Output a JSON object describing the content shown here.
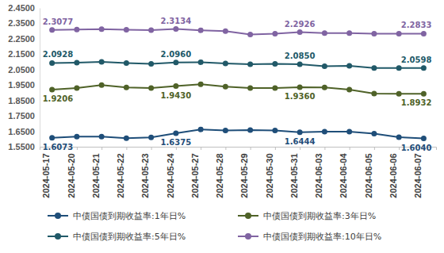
{
  "chart_data": {
    "type": "line",
    "x": [
      "2024-05-17",
      "2024-05-20",
      "2024-05-21",
      "2024-05-22",
      "2024-05-23",
      "2024-05-24",
      "2024-05-27",
      "2024-05-28",
      "2024-05-29",
      "2024-05-30",
      "2024-05-31",
      "2024-06-03",
      "2024-06-04",
      "2024-06-05",
      "2024-06-06",
      "2024-06-07"
    ],
    "series": [
      {
        "name": "中债国债到期收益率:1年日%",
        "color": "#1f4e79",
        "marker": "circle",
        "values": [
          1.6073,
          1.615,
          1.615,
          1.605,
          1.61,
          1.6375,
          1.662,
          1.655,
          1.658,
          1.655,
          1.6444,
          1.648,
          1.648,
          1.635,
          1.612,
          1.604
        ],
        "value_labels": [
          "1.6073",
          null,
          null,
          null,
          null,
          "1.6375",
          null,
          null,
          null,
          null,
          "1.6444",
          null,
          null,
          null,
          null,
          "1.6040"
        ]
      },
      {
        "name": "中债国债到期收益率:3年日%",
        "color": "#4f6228",
        "marker": "circle",
        "values": [
          1.9206,
          1.93,
          1.95,
          1.935,
          1.93,
          1.943,
          1.955,
          1.94,
          1.93,
          1.93,
          1.936,
          1.935,
          1.92,
          1.895,
          1.893,
          1.8932
        ],
        "value_labels": [
          "1.9206",
          null,
          null,
          null,
          null,
          "1.9430",
          null,
          null,
          null,
          null,
          "1.9360",
          null,
          null,
          null,
          null,
          "1.8932"
        ]
      },
      {
        "name": "中债国债到期收益率:5年日%",
        "color": "#215968",
        "marker": "circle",
        "values": [
          2.0928,
          2.095,
          2.1,
          2.093,
          2.088,
          2.096,
          2.098,
          2.09,
          2.085,
          2.087,
          2.085,
          2.072,
          2.075,
          2.06,
          2.06,
          2.0598
        ],
        "value_labels": [
          "2.0928",
          null,
          null,
          null,
          null,
          "2.0960",
          null,
          null,
          null,
          null,
          "2.0850",
          null,
          null,
          null,
          null,
          "2.0598"
        ]
      },
      {
        "name": "中债国债到期收益率:10年日%",
        "color": "#8064a2",
        "marker": "circle",
        "values": [
          2.3077,
          2.31,
          2.313,
          2.308,
          2.306,
          2.3134,
          2.305,
          2.3,
          2.278,
          2.283,
          2.2926,
          2.287,
          2.287,
          2.283,
          2.283,
          2.2833
        ],
        "value_labels": [
          "2.3077",
          null,
          null,
          null,
          null,
          "2.3134",
          null,
          null,
          null,
          null,
          "2.2926",
          null,
          null,
          null,
          null,
          "2.2833"
        ]
      }
    ],
    "ylim": [
      1.55,
      2.45
    ],
    "yticks": [
      {
        "value": 1.55,
        "label": "1.5500"
      },
      {
        "value": 1.65,
        "label": "1.6500"
      },
      {
        "value": 1.75,
        "label": "1.7500"
      },
      {
        "value": 1.85,
        "label": "1.8500"
      },
      {
        "value": 1.95,
        "label": "1.9500"
      },
      {
        "value": 2.05,
        "label": "2.0500"
      },
      {
        "value": 2.15,
        "label": "2.1500"
      },
      {
        "value": 2.25,
        "label": "2.2500"
      },
      {
        "value": 2.35,
        "label": "2.3500"
      },
      {
        "value": 2.45,
        "label": "2.4500"
      }
    ],
    "grid": false,
    "legend": "bottom",
    "data_labels": true,
    "marker": "circle"
  }
}
